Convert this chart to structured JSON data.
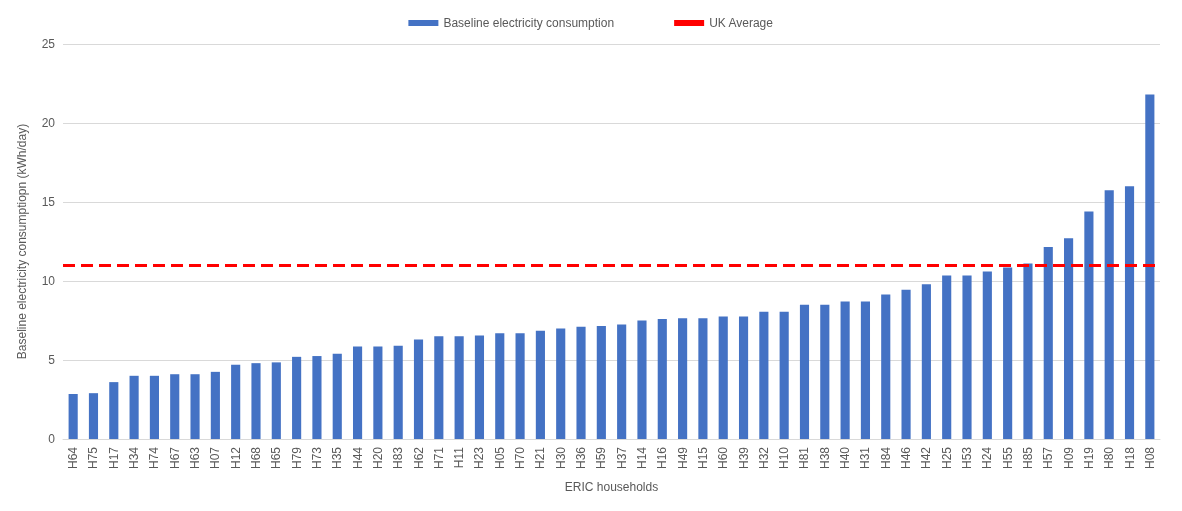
{
  "chart_data": {
    "type": "bar",
    "xlabel": "ERIC households",
    "ylabel": "Baseline electricity consumptiopn (kWh/day)",
    "categories": [
      "H64",
      "H75",
      "H17",
      "H34",
      "H74",
      "H67",
      "H63",
      "H07",
      "H12",
      "H68",
      "H65",
      "H79",
      "H73",
      "H35",
      "H44",
      "H20",
      "H83",
      "H62",
      "H71",
      "H11",
      "H23",
      "H05",
      "H70",
      "H21",
      "H30",
      "H36",
      "H59",
      "H37",
      "H14",
      "H16",
      "H49",
      "H15",
      "H60",
      "H39",
      "H32",
      "H10",
      "H81",
      "H38",
      "H40",
      "H31",
      "H84",
      "H46",
      "H42",
      "H25",
      "H53",
      "H24",
      "H55",
      "H85",
      "H57",
      "H09",
      "H19",
      "H80",
      "H18",
      "H08"
    ],
    "series": [
      {
        "name": "Baseline electricity consumption",
        "color": "#4472c4",
        "values": [
          2.85,
          2.9,
          3.6,
          4.0,
          4.0,
          4.1,
          4.1,
          4.25,
          4.7,
          4.8,
          4.85,
          5.2,
          5.25,
          5.4,
          5.85,
          5.85,
          5.9,
          6.3,
          6.5,
          6.5,
          6.55,
          6.7,
          6.7,
          6.85,
          7.0,
          7.1,
          7.15,
          7.25,
          7.5,
          7.6,
          7.65,
          7.65,
          7.75,
          7.75,
          8.05,
          8.05,
          8.5,
          8.5,
          8.7,
          8.7,
          9.15,
          9.45,
          9.8,
          10.35,
          10.35,
          10.6,
          10.85,
          11.1,
          12.15,
          12.7,
          14.4,
          15.75,
          16.0,
          21.8
        ]
      }
    ],
    "ylim": [
      0,
      25
    ],
    "yticks": [
      0,
      5,
      10,
      15,
      20,
      25
    ],
    "grid": "y",
    "legend": "top",
    "ref_lines": [
      {
        "axis": "y",
        "value": 11,
        "label": "UK Average",
        "color": "#ff0000",
        "line_style": "dashed"
      }
    ]
  }
}
